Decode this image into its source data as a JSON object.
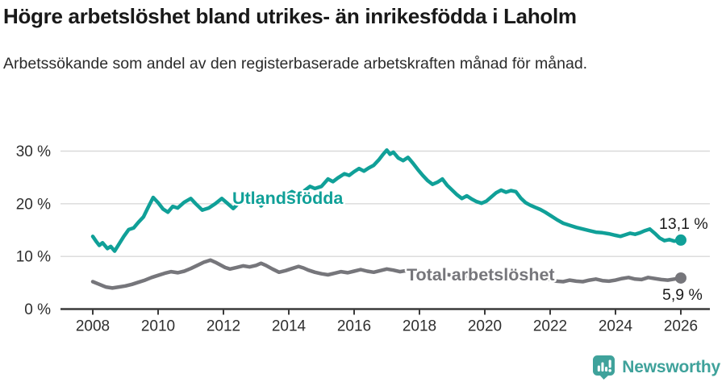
{
  "header": {
    "title": "Högre arbetslöshet bland utrikes- än inrikesfödda i Laholm",
    "subtitle": "Arbetssökande som andel av den registerbaserade arbetskraften månad för månad."
  },
  "chart_data": {
    "type": "line",
    "unit": "%",
    "grid": "horizontal",
    "legend_position": "inline-labels",
    "x_axis": {
      "ticks": [
        2008,
        2010,
        2012,
        2014,
        2016,
        2018,
        2020,
        2022,
        2024,
        2026
      ],
      "range": [
        2007.0,
        2026.9
      ]
    },
    "y_axis": {
      "ticks": [
        {
          "value": 0,
          "label": "0 %"
        },
        {
          "value": 10,
          "label": "10 %"
        },
        {
          "value": 20,
          "label": "20 %"
        },
        {
          "value": 30,
          "label": "30 %"
        }
      ],
      "range": [
        0,
        33
      ]
    },
    "series": [
      {
        "name": "Utlandsfödda",
        "color": "#10a098",
        "end_label": "13,1 %",
        "end_value": 13.1,
        "points": [
          [
            2008.0,
            13.8
          ],
          [
            2008.1,
            12.9
          ],
          [
            2008.2,
            12.1
          ],
          [
            2008.3,
            12.6
          ],
          [
            2008.45,
            11.5
          ],
          [
            2008.55,
            11.9
          ],
          [
            2008.67,
            11.0
          ],
          [
            2008.8,
            12.3
          ],
          [
            2008.95,
            13.8
          ],
          [
            2009.1,
            15.1
          ],
          [
            2009.25,
            15.4
          ],
          [
            2009.4,
            16.5
          ],
          [
            2009.55,
            17.5
          ],
          [
            2009.7,
            19.4
          ],
          [
            2009.85,
            21.2
          ],
          [
            2010.0,
            20.2
          ],
          [
            2010.15,
            19.0
          ],
          [
            2010.3,
            18.4
          ],
          [
            2010.45,
            19.5
          ],
          [
            2010.6,
            19.2
          ],
          [
            2010.8,
            20.3
          ],
          [
            2011.0,
            21.0
          ],
          [
            2011.15,
            20.0
          ],
          [
            2011.35,
            18.8
          ],
          [
            2011.55,
            19.2
          ],
          [
            2011.75,
            20.0
          ],
          [
            2011.95,
            21.0
          ],
          [
            2012.1,
            20.2
          ],
          [
            2012.3,
            19.1
          ],
          [
            2012.5,
            20.3
          ],
          [
            2012.7,
            21.8
          ],
          [
            2012.85,
            22.2
          ],
          [
            2013.0,
            20.8
          ],
          [
            2013.15,
            19.6
          ],
          [
            2013.3,
            20.4
          ],
          [
            2013.5,
            21.3
          ],
          [
            2013.7,
            20.8
          ],
          [
            2013.9,
            21.5
          ],
          [
            2014.1,
            22.3
          ],
          [
            2014.3,
            21.6
          ],
          [
            2014.5,
            22.6
          ],
          [
            2014.65,
            23.3
          ],
          [
            2014.8,
            22.9
          ],
          [
            2015.0,
            23.3
          ],
          [
            2015.2,
            24.7
          ],
          [
            2015.35,
            24.2
          ],
          [
            2015.5,
            24.9
          ],
          [
            2015.7,
            25.7
          ],
          [
            2015.85,
            25.4
          ],
          [
            2016.0,
            26.1
          ],
          [
            2016.15,
            26.7
          ],
          [
            2016.3,
            26.2
          ],
          [
            2016.45,
            26.8
          ],
          [
            2016.6,
            27.3
          ],
          [
            2016.75,
            28.3
          ],
          [
            2016.9,
            29.5
          ],
          [
            2017.0,
            30.2
          ],
          [
            2017.1,
            29.4
          ],
          [
            2017.2,
            29.8
          ],
          [
            2017.35,
            28.7
          ],
          [
            2017.5,
            28.2
          ],
          [
            2017.65,
            28.8
          ],
          [
            2017.8,
            27.7
          ],
          [
            2017.95,
            26.5
          ],
          [
            2018.1,
            25.4
          ],
          [
            2018.25,
            24.4
          ],
          [
            2018.4,
            23.7
          ],
          [
            2018.55,
            24.1
          ],
          [
            2018.7,
            24.7
          ],
          [
            2018.85,
            23.5
          ],
          [
            2019.0,
            22.6
          ],
          [
            2019.15,
            21.7
          ],
          [
            2019.3,
            21.0
          ],
          [
            2019.45,
            21.5
          ],
          [
            2019.6,
            20.9
          ],
          [
            2019.75,
            20.4
          ],
          [
            2019.9,
            20.1
          ],
          [
            2020.05,
            20.5
          ],
          [
            2020.2,
            21.3
          ],
          [
            2020.35,
            22.1
          ],
          [
            2020.5,
            22.6
          ],
          [
            2020.65,
            22.2
          ],
          [
            2020.8,
            22.5
          ],
          [
            2020.95,
            22.3
          ],
          [
            2021.1,
            21.1
          ],
          [
            2021.25,
            20.2
          ],
          [
            2021.4,
            19.7
          ],
          [
            2021.55,
            19.3
          ],
          [
            2021.7,
            18.9
          ],
          [
            2021.85,
            18.4
          ],
          [
            2022.0,
            17.8
          ],
          [
            2022.2,
            17.0
          ],
          [
            2022.4,
            16.3
          ],
          [
            2022.6,
            15.9
          ],
          [
            2022.8,
            15.5
          ],
          [
            2023.0,
            15.2
          ],
          [
            2023.2,
            14.9
          ],
          [
            2023.4,
            14.6
          ],
          [
            2023.6,
            14.5
          ],
          [
            2023.8,
            14.3
          ],
          [
            2024.0,
            14.0
          ],
          [
            2024.15,
            13.8
          ],
          [
            2024.3,
            14.1
          ],
          [
            2024.45,
            14.4
          ],
          [
            2024.6,
            14.2
          ],
          [
            2024.75,
            14.5
          ],
          [
            2024.9,
            14.9
          ],
          [
            2025.05,
            15.2
          ],
          [
            2025.2,
            14.4
          ],
          [
            2025.35,
            13.5
          ],
          [
            2025.5,
            13.0
          ],
          [
            2025.65,
            13.2
          ],
          [
            2025.8,
            12.9
          ],
          [
            2026.0,
            13.1
          ]
        ]
      },
      {
        "name": "Total arbetslöshet",
        "color": "#76767b",
        "end_label": "5,9 %",
        "end_value": 5.9,
        "points": [
          [
            2008.0,
            5.2
          ],
          [
            2008.2,
            4.7
          ],
          [
            2008.4,
            4.2
          ],
          [
            2008.6,
            4.0
          ],
          [
            2008.8,
            4.2
          ],
          [
            2009.0,
            4.4
          ],
          [
            2009.2,
            4.7
          ],
          [
            2009.4,
            5.1
          ],
          [
            2009.6,
            5.5
          ],
          [
            2009.8,
            6.0
          ],
          [
            2010.0,
            6.4
          ],
          [
            2010.2,
            6.8
          ],
          [
            2010.4,
            7.1
          ],
          [
            2010.6,
            6.9
          ],
          [
            2010.8,
            7.2
          ],
          [
            2011.0,
            7.7
          ],
          [
            2011.2,
            8.3
          ],
          [
            2011.4,
            8.9
          ],
          [
            2011.6,
            9.3
          ],
          [
            2011.75,
            8.9
          ],
          [
            2011.9,
            8.4
          ],
          [
            2012.05,
            7.9
          ],
          [
            2012.2,
            7.6
          ],
          [
            2012.4,
            7.9
          ],
          [
            2012.6,
            8.2
          ],
          [
            2012.8,
            8.0
          ],
          [
            2013.0,
            8.3
          ],
          [
            2013.15,
            8.7
          ],
          [
            2013.3,
            8.3
          ],
          [
            2013.5,
            7.6
          ],
          [
            2013.7,
            7.0
          ],
          [
            2013.9,
            7.3
          ],
          [
            2014.1,
            7.7
          ],
          [
            2014.3,
            8.1
          ],
          [
            2014.45,
            7.8
          ],
          [
            2014.6,
            7.4
          ],
          [
            2014.8,
            7.0
          ],
          [
            2015.0,
            6.7
          ],
          [
            2015.2,
            6.5
          ],
          [
            2015.4,
            6.8
          ],
          [
            2015.6,
            7.1
          ],
          [
            2015.8,
            6.9
          ],
          [
            2016.0,
            7.2
          ],
          [
            2016.2,
            7.5
          ],
          [
            2016.4,
            7.2
          ],
          [
            2016.6,
            7.0
          ],
          [
            2016.8,
            7.3
          ],
          [
            2017.0,
            7.6
          ],
          [
            2017.2,
            7.4
          ],
          [
            2017.4,
            7.1
          ],
          [
            2017.6,
            7.3
          ],
          [
            2017.8,
            7.5
          ],
          [
            2018.0,
            7.2
          ],
          [
            2018.3,
            6.9
          ],
          [
            2018.6,
            6.7
          ],
          [
            2018.9,
            6.5
          ],
          [
            2019.2,
            6.3
          ],
          [
            2019.5,
            6.2
          ],
          [
            2019.8,
            6.0
          ],
          [
            2020.0,
            6.1
          ],
          [
            2020.3,
            6.5
          ],
          [
            2020.6,
            6.7
          ],
          [
            2020.9,
            6.5
          ],
          [
            2021.2,
            6.2
          ],
          [
            2021.5,
            6.0
          ],
          [
            2021.8,
            5.8
          ],
          [
            2022.0,
            5.6
          ],
          [
            2022.2,
            5.3
          ],
          [
            2022.4,
            5.2
          ],
          [
            2022.6,
            5.5
          ],
          [
            2022.8,
            5.3
          ],
          [
            2023.0,
            5.2
          ],
          [
            2023.2,
            5.5
          ],
          [
            2023.4,
            5.7
          ],
          [
            2023.6,
            5.4
          ],
          [
            2023.8,
            5.3
          ],
          [
            2024.0,
            5.5
          ],
          [
            2024.2,
            5.8
          ],
          [
            2024.4,
            6.0
          ],
          [
            2024.6,
            5.7
          ],
          [
            2024.8,
            5.6
          ],
          [
            2025.0,
            6.0
          ],
          [
            2025.2,
            5.8
          ],
          [
            2025.4,
            5.6
          ],
          [
            2025.6,
            5.5
          ],
          [
            2025.8,
            5.7
          ],
          [
            2026.0,
            5.9
          ]
        ]
      }
    ],
    "colors": {
      "gridline": "#d9d9d9",
      "axis": "#3a3a3a",
      "tick_label": "#2e2e2e",
      "end_label_text": "#1a1a1a"
    }
  },
  "footer": {
    "brand": "Newsworthy",
    "brand_color": "#3fa29b"
  }
}
